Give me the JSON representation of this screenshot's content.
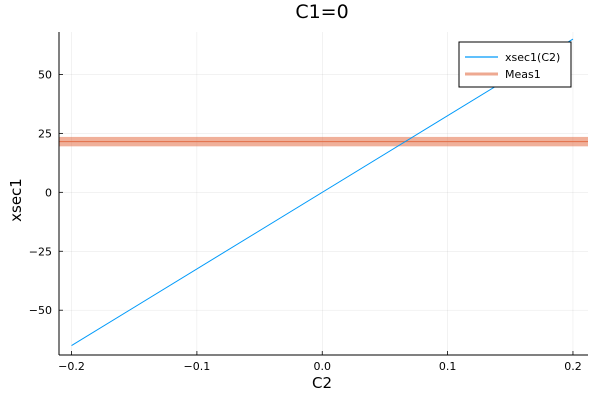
{
  "chart_data": {
    "type": "line",
    "title": "C1=0",
    "xlabel": "C2",
    "ylabel": "xsec1",
    "xlim": [
      -0.21,
      0.212
    ],
    "ylim": [
      -69,
      68
    ],
    "xticks": [
      -0.2,
      -0.1,
      0.0,
      0.1,
      0.2
    ],
    "xtick_labels": [
      "−0.2",
      "−0.1",
      "0.0",
      "0.1",
      "0.2"
    ],
    "yticks": [
      -50,
      -25,
      0,
      25,
      50
    ],
    "ytick_labels": [
      "−50",
      "−25",
      "0",
      "25",
      "50"
    ],
    "grid": true,
    "legend_position": "top-right",
    "series": [
      {
        "name": "xsec1(C2)",
        "kind": "line",
        "color": "#009AFA",
        "x": [
          -0.2,
          0.2
        ],
        "y": [
          -65,
          65
        ]
      },
      {
        "name": "Meas1",
        "kind": "hband",
        "color": "#E36F47",
        "value": 21.5,
        "lower": 19.5,
        "upper": 23.5
      }
    ]
  }
}
